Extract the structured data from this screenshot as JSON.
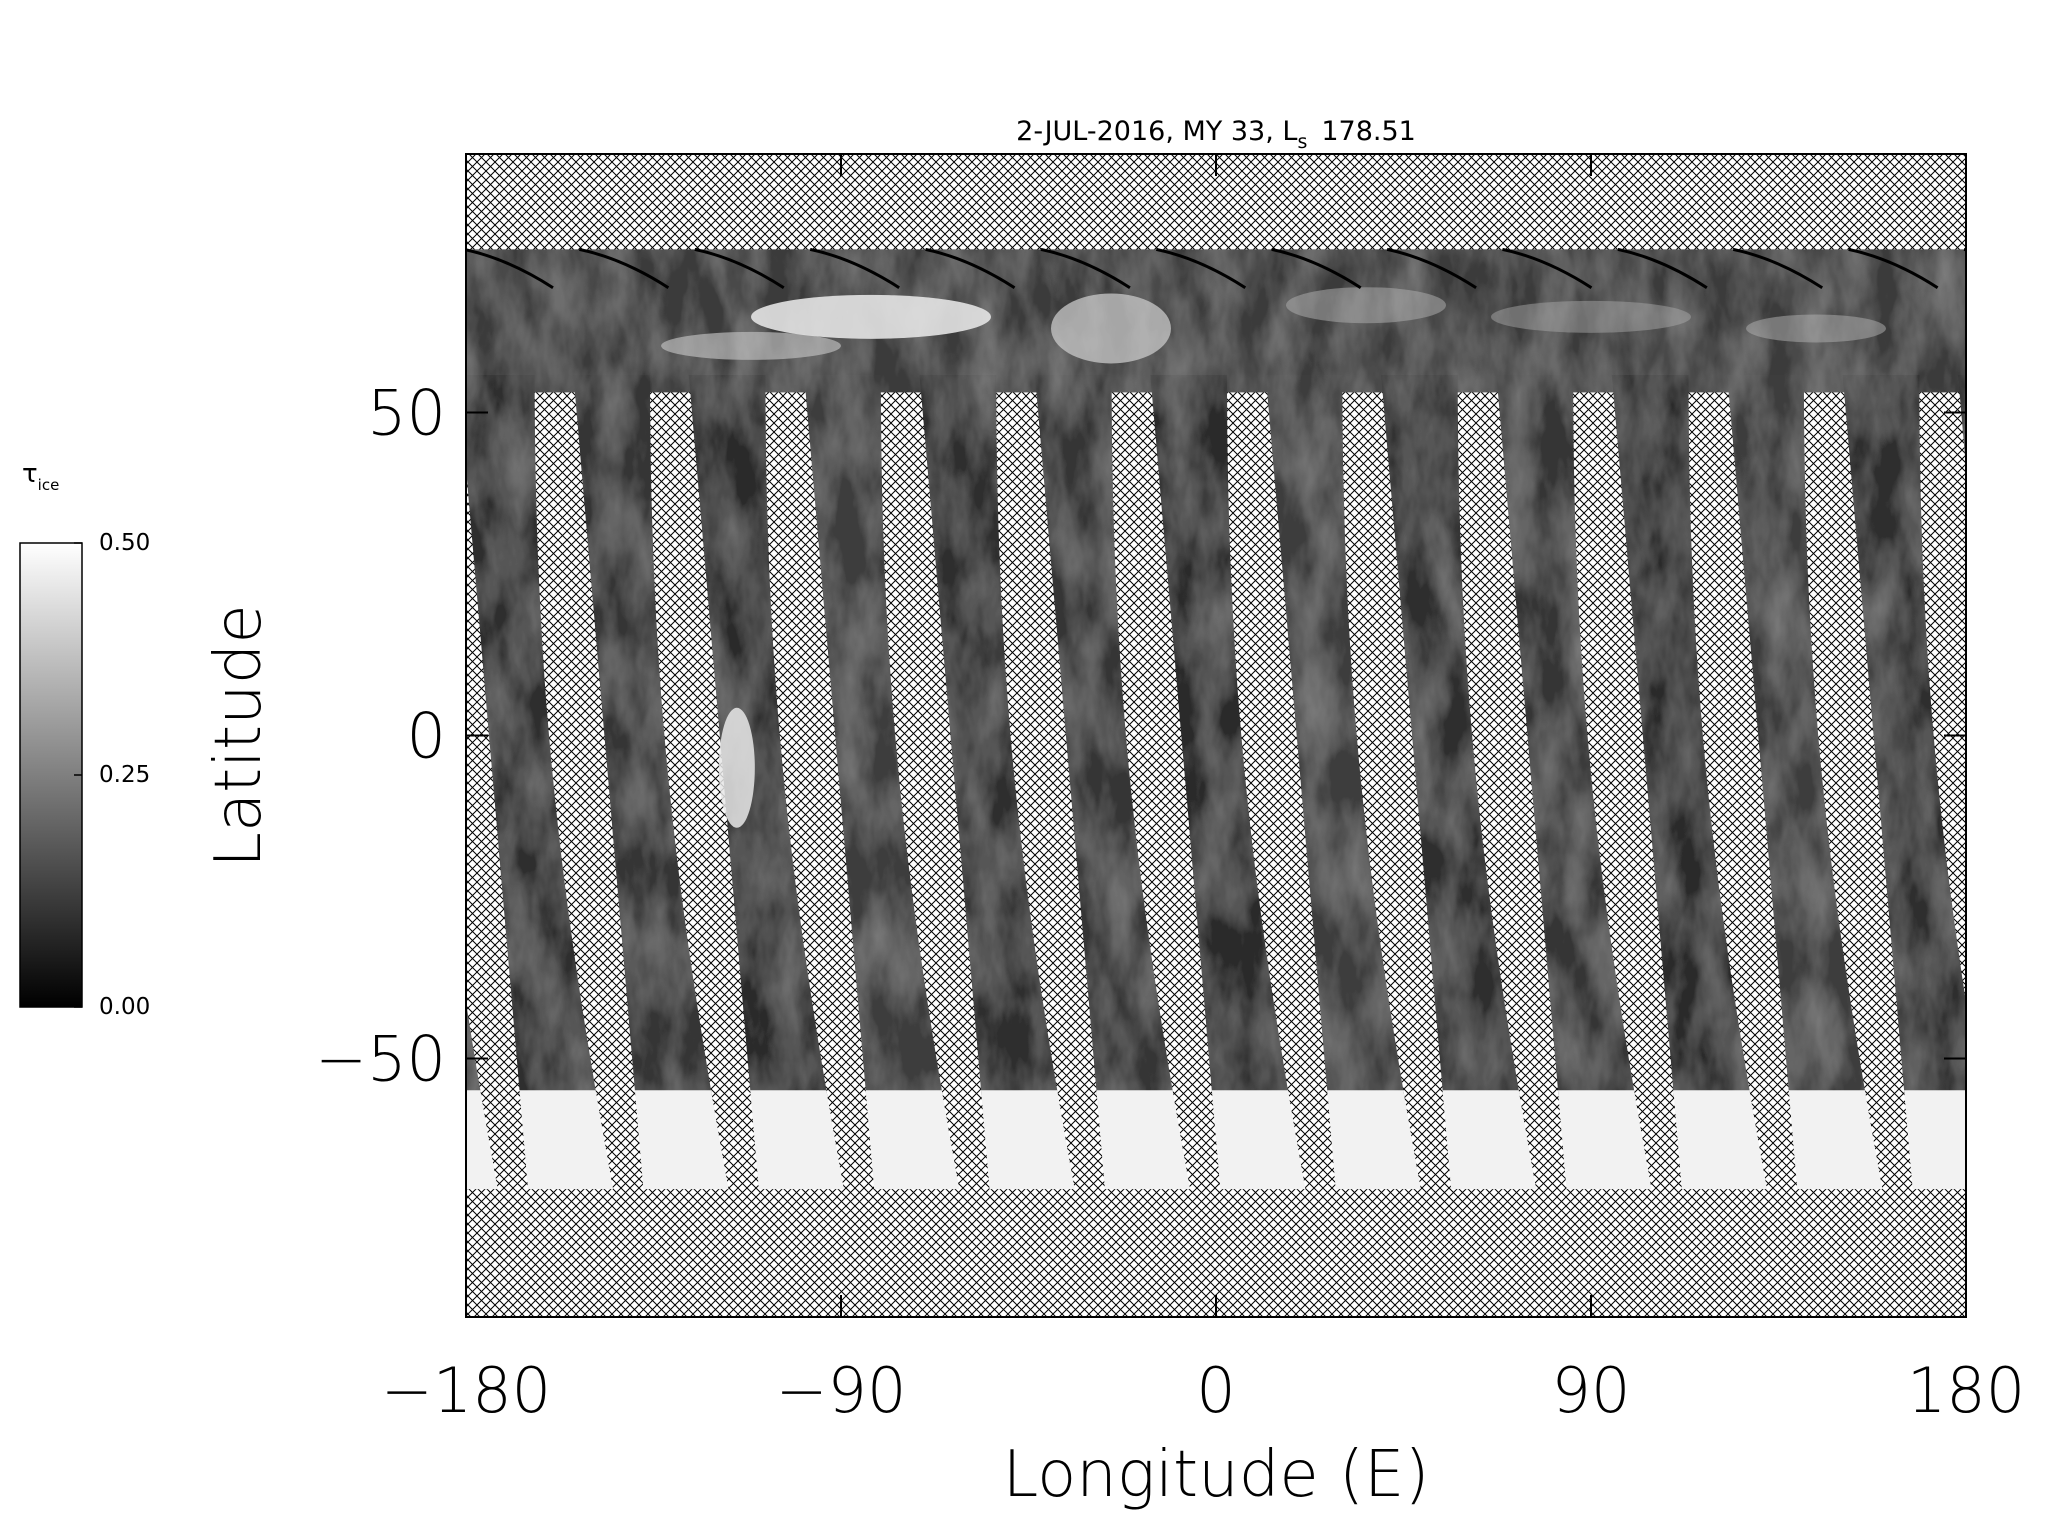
{
  "chart_data": {
    "type": "image-map",
    "title": {
      "text": "2-JUL-2016, MY 33,  L",
      "subscript": "s",
      "suffix": "178.51"
    },
    "x_label": "Longitude (E)",
    "y_label": "Latitude",
    "xlim": [
      -180,
      180
    ],
    "ylim": [
      -90,
      90
    ],
    "xticks": [
      {
        "value": -180,
        "label": "−180"
      },
      {
        "value": -90,
        "label": "−90"
      },
      0,
      90,
      180
    ],
    "yticks": [
      {
        "value": -50,
        "label": "−50"
      },
      0,
      50
    ],
    "colorbar": {
      "label": "τ",
      "label_subscript": "ice",
      "zlim": [
        0,
        0.5
      ],
      "ticks": [
        {
          "value": 0,
          "label": "0.00"
        },
        {
          "value": 0.25,
          "label": "0.25"
        },
        {
          "value": 0.5,
          "label": "0.50"
        }
      ],
      "colors": [
        "#000000",
        "#ffffff"
      ]
    }
  }
}
